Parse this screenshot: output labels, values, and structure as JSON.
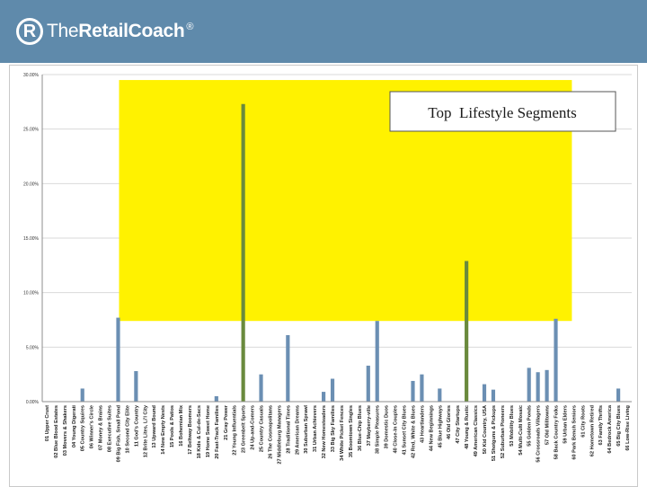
{
  "brand": {
    "logo_mark": "R",
    "name_light": "The",
    "name_bold": "RetailCoach",
    "registered": "®",
    "header_color": "#5f8aab"
  },
  "colors": {
    "bar": "#6b8fb3",
    "bar_highlight": "#6a8a3d",
    "highlight": "#fff200",
    "grid": "#d9d9d9"
  },
  "chart_data": {
    "type": "bar",
    "title": "Top  Lifestyle Segments",
    "xlabel": "",
    "ylabel": "",
    "ylim": [
      0,
      30
    ],
    "yticks": [
      0,
      5,
      10,
      15,
      20,
      25,
      30
    ],
    "ytick_labels": [
      "0.00%",
      "5.00%",
      "10.00%",
      "15.00%",
      "20.00%",
      "25.00%",
      "30.00%"
    ],
    "highlight_band": {
      "from_category": 9,
      "to_category": 58,
      "y_from": 7.4,
      "y_to": 29.5
    },
    "categories": [
      "01 Upper Crust",
      "02 Blue Blood Estates",
      "03 Movers & Shakers",
      "04 Young Digerati",
      "05 Country Squires",
      "06 Winner's Circle",
      "07 Money & Brains",
      "08 Executive Suites",
      "09 Big Fish, Small Pond",
      "10 Second City Elite",
      "11 God's Country",
      "12 Brite Lites, Li'l City",
      "13 Upward Bound",
      "14 New Empty Nests",
      "15 Pools & Patios",
      "16 Bohemian Mix",
      "17 Beltway Boomers",
      "18 Kids & Cul-de-Sacs",
      "19 Home Sweet Home",
      "20 Fast-Track Families",
      "21 Gray Power",
      "22 Young Influentials",
      "23 Greenbelt Sports",
      "24 Up-and-Comers",
      "25 Country Casuals",
      "26 The Cosmopolitans",
      "27 Middleburg Managers",
      "28 Traditional Times",
      "29 American Dreams",
      "30 Suburban Sprawl",
      "31 Urban Achievers",
      "32 New Homesteaders",
      "33 Big Sky Families",
      "34 White Picket Fences",
      "35 Boomtown Singles",
      "36 Blue-Chip Blues",
      "37 Mayberry-ville",
      "38 Simple Pleasures",
      "39 Domestic Duos",
      "40 Close-In Couples",
      "41 Sunset City Blues",
      "42 Red, White & Blues",
      "43 Heartlanders",
      "44 New Beginnings",
      "45 Blue Highways",
      "46 Old Glories",
      "47 City Startups",
      "48 Young & Rustic",
      "49 American Classics",
      "50 Kid Country, USA",
      "51 Shotguns & Pickups",
      "52 Suburban Pioneers",
      "53 Mobility Blues",
      "54 Multi-Culti Mosaic",
      "55 Golden Ponds",
      "56 Crossroads Villagers",
      "57 Old Milltowns",
      "58 Back Country Folks",
      "59 Urban Elders",
      "60 Park Bench Seniors",
      "61 City Roots",
      "62 Hometown Retired",
      "63 Family Thrifts",
      "64 Bedrock America",
      "65 Big City Blues",
      "66 Low-Rise Living"
    ],
    "values": [
      0,
      0,
      0,
      0,
      1.2,
      0,
      0,
      0,
      7.7,
      0,
      2.8,
      0,
      0,
      0,
      0,
      0,
      0,
      0,
      0,
      0.5,
      0,
      0,
      27.3,
      0,
      2.5,
      0,
      0,
      6.1,
      0,
      0,
      0,
      0.9,
      2.1,
      0,
      0,
      0,
      3.3,
      7.4,
      0,
      0,
      0,
      1.9,
      2.5,
      0,
      1.2,
      0,
      0,
      12.9,
      0,
      1.6,
      1.1,
      0,
      0,
      0,
      3.1,
      2.7,
      2.9,
      7.6,
      0,
      0,
      0,
      0,
      0,
      0,
      1.2,
      0
    ],
    "highlighted_categories": [
      "23 Greenbelt Sports",
      "48 Young & Rustic"
    ]
  }
}
